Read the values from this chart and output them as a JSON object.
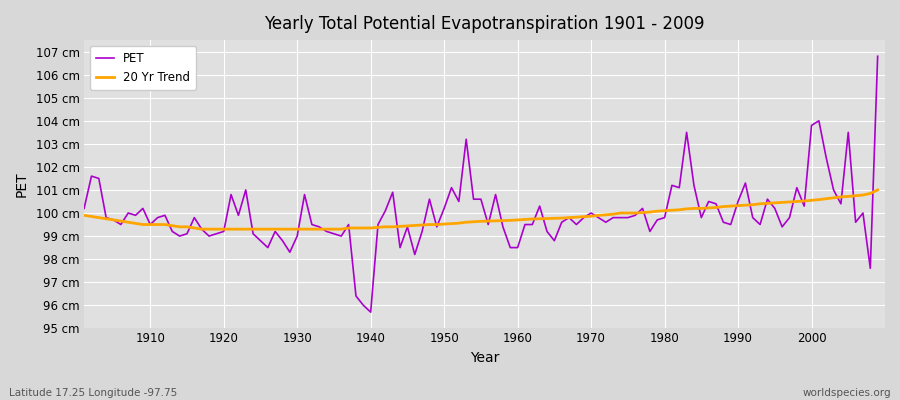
{
  "title": "Yearly Total Potential Evapotranspiration 1901 - 2009",
  "xlabel": "Year",
  "ylabel": "PET",
  "subtitle": "Latitude 17.25 Longitude -97.75",
  "watermark": "worldspecies.org",
  "pet_color": "#AA00CC",
  "trend_color": "#FFA500",
  "bg_color": "#D8D8D8",
  "plot_bg_color": "#E0E0E0",
  "ylim": [
    95,
    107.5
  ],
  "years": [
    1901,
    1902,
    1903,
    1904,
    1905,
    1906,
    1907,
    1908,
    1909,
    1910,
    1911,
    1912,
    1913,
    1914,
    1915,
    1916,
    1917,
    1918,
    1919,
    1920,
    1921,
    1922,
    1923,
    1924,
    1925,
    1926,
    1927,
    1928,
    1929,
    1930,
    1931,
    1932,
    1933,
    1934,
    1935,
    1936,
    1937,
    1938,
    1939,
    1940,
    1941,
    1942,
    1943,
    1944,
    1945,
    1946,
    1947,
    1948,
    1949,
    1950,
    1951,
    1952,
    1953,
    1954,
    1955,
    1956,
    1957,
    1958,
    1959,
    1960,
    1961,
    1962,
    1963,
    1964,
    1965,
    1966,
    1967,
    1968,
    1969,
    1970,
    1971,
    1972,
    1973,
    1974,
    1975,
    1976,
    1977,
    1978,
    1979,
    1980,
    1981,
    1982,
    1983,
    1984,
    1985,
    1986,
    1987,
    1988,
    1989,
    1990,
    1991,
    1992,
    1993,
    1994,
    1995,
    1996,
    1997,
    1998,
    1999,
    2000,
    2001,
    2002,
    2003,
    2004,
    2005,
    2006,
    2007,
    2008,
    2009
  ],
  "pet_values": [
    100.2,
    101.6,
    101.5,
    99.8,
    99.7,
    99.5,
    100.0,
    99.9,
    100.2,
    99.5,
    99.8,
    99.9,
    99.2,
    99.0,
    99.1,
    99.8,
    99.3,
    99.0,
    99.1,
    99.2,
    100.8,
    99.9,
    101.0,
    99.1,
    98.8,
    98.5,
    99.2,
    98.8,
    98.3,
    99.0,
    100.8,
    99.5,
    99.4,
    99.2,
    99.1,
    99.0,
    99.5,
    96.4,
    96.0,
    95.7,
    99.5,
    100.1,
    100.9,
    98.5,
    99.4,
    98.2,
    99.2,
    100.6,
    99.4,
    100.2,
    101.1,
    100.5,
    103.2,
    100.6,
    100.6,
    99.5,
    100.8,
    99.4,
    98.5,
    98.5,
    99.5,
    99.5,
    100.3,
    99.2,
    98.8,
    99.6,
    99.8,
    99.5,
    99.8,
    100.0,
    99.8,
    99.6,
    99.8,
    99.8,
    99.8,
    99.9,
    100.2,
    99.2,
    99.7,
    99.8,
    101.2,
    101.1,
    103.5,
    101.2,
    99.8,
    100.5,
    100.4,
    99.6,
    99.5,
    100.5,
    101.3,
    99.8,
    99.5,
    100.6,
    100.2,
    99.4,
    99.8,
    101.1,
    100.3,
    103.8,
    104.0,
    102.4,
    101.0,
    100.4,
    103.5,
    99.6,
    100.0,
    97.6,
    106.8
  ],
  "trend_values": [
    99.9,
    99.85,
    99.8,
    99.75,
    99.7,
    99.65,
    99.6,
    99.55,
    99.5,
    99.5,
    99.5,
    99.5,
    99.45,
    99.4,
    99.4,
    99.35,
    99.3,
    99.3,
    99.3,
    99.3,
    99.3,
    99.3,
    99.3,
    99.3,
    99.3,
    99.3,
    99.3,
    99.3,
    99.3,
    99.3,
    99.3,
    99.3,
    99.3,
    99.3,
    99.3,
    99.3,
    99.35,
    99.35,
    99.35,
    99.35,
    99.38,
    99.4,
    99.4,
    99.42,
    99.44,
    99.46,
    99.48,
    99.5,
    99.5,
    99.52,
    99.54,
    99.56,
    99.6,
    99.62,
    99.64,
    99.65,
    99.66,
    99.67,
    99.68,
    99.7,
    99.72,
    99.74,
    99.75,
    99.76,
    99.77,
    99.78,
    99.8,
    99.82,
    99.84,
    99.86,
    99.9,
    99.92,
    99.95,
    100.0,
    100.0,
    100.0,
    100.02,
    100.04,
    100.08,
    100.1,
    100.12,
    100.14,
    100.18,
    100.2,
    100.2,
    100.22,
    100.24,
    100.28,
    100.3,
    100.32,
    100.34,
    100.36,
    100.4,
    100.42,
    100.44,
    100.46,
    100.48,
    100.5,
    100.52,
    100.55,
    100.58,
    100.62,
    100.66,
    100.7,
    100.72,
    100.75,
    100.78,
    100.85,
    101.0
  ]
}
